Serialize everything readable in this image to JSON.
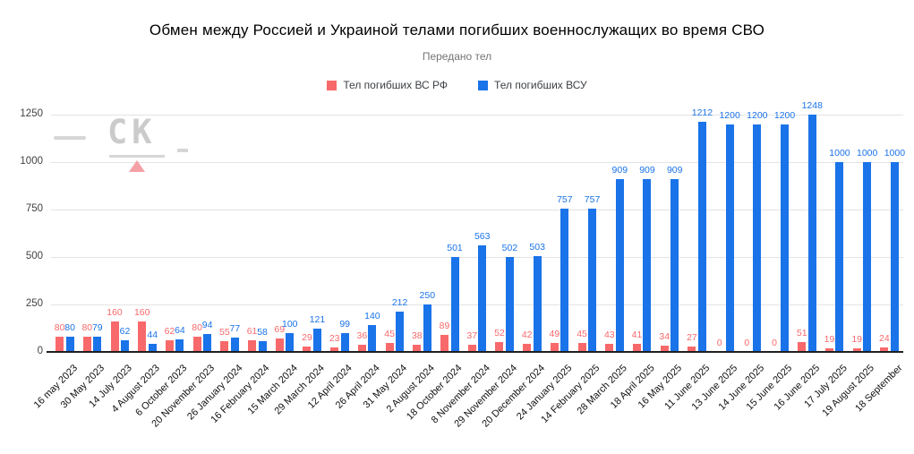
{
  "header": {
    "title": "Обмен между Россией и Украиной телами погибших военнослужащих во время СВО",
    "subtitle": "Передано тел"
  },
  "watermark": {
    "text": "CK",
    "triangle_color": "#f4a0a6",
    "dash_color": "#d6d6d6"
  },
  "colors": {
    "rf_red": "#f8696b",
    "vsu_blue": "#1a73e8",
    "gridline": "#e3e3e3",
    "axis_text": "#424242",
    "baseline": "#1f1f1f"
  },
  "chart_data": {
    "type": "bar",
    "title": "Обмен между Россией и Украиной телами погибших военнослужащих во время СВО",
    "subtitle": "Передано тел",
    "xlabel": "",
    "ylabel": "",
    "ylim": [
      0,
      1250
    ],
    "yticks": [
      0,
      250,
      500,
      750,
      1000,
      1250
    ],
    "grid": true,
    "legend_position": "top",
    "data_labels": true,
    "categories": [
      "16 may 2023",
      "30 May 2023",
      "14 July 2023",
      "4 August 2023",
      "6 October 2023",
      "20 November 2023",
      "26 January 2024",
      "16 February 2024",
      "15 March 2024",
      "29 March 2024",
      "12 April 2024",
      "26 April 2024",
      "31 May 2024",
      "2 August 2024",
      "18 October 2024",
      "8 November 2024",
      "29 November 2024",
      "20 December 2024",
      "24 January 2025",
      "14 February 2025",
      "28 March 2025",
      "18 April 2025",
      "16 May 2025",
      "11 June 2025",
      "13 June 2025",
      "14 June 2025",
      "15 June 2025",
      "16 June 2025",
      "17 July 2025",
      "19 August 2025",
      "18 September"
    ],
    "series": [
      {
        "name": "Тел погибших ВС  РФ",
        "color": "#f8696b",
        "values": [
          80,
          80,
          160,
          160,
          62,
          80,
          55,
          61,
          69,
          29,
          23,
          36,
          45,
          38,
          89,
          37,
          52,
          42,
          49,
          45,
          43,
          41,
          34,
          27,
          0,
          0,
          0,
          51,
          19,
          19,
          24
        ]
      },
      {
        "name": "Тел погибших ВСУ",
        "color": "#1a73e8",
        "values": [
          80,
          79,
          62,
          44,
          64,
          94,
          77,
          58,
          100,
          121,
          99,
          140,
          212,
          250,
          501,
          563,
          502,
          503,
          757,
          757,
          909,
          909,
          909,
          1212,
          1200,
          1200,
          1200,
          1248,
          1000,
          1000,
          1000
        ]
      }
    ]
  }
}
